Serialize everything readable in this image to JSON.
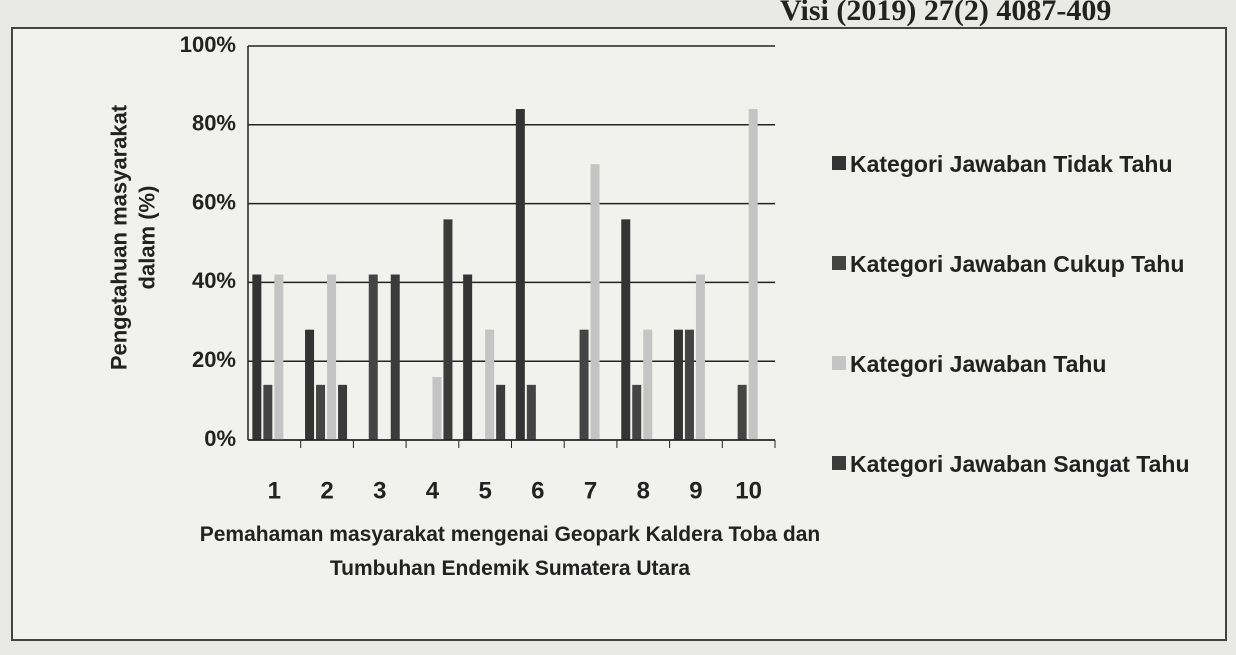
{
  "header": "Visi (2019) 27(2) 4087-409",
  "chart_data": {
    "type": "bar",
    "x_label": "Pemahaman masyarakat mengenai Geopark Kaldera Toba dan Tumbuhan Endemik Sumatera Utara",
    "y_label": "Pengetahuan masyarakat dalam (%)",
    "categories": [
      "1",
      "2",
      "3",
      "4",
      "5",
      "6",
      "7",
      "8",
      "9",
      "10"
    ],
    "series": [
      {
        "name": "Kategori Jawaban  Tidak Tahu",
        "color": "#333333",
        "values": [
          42,
          28,
          0,
          0,
          42,
          84,
          0,
          56,
          28,
          0
        ]
      },
      {
        "name": "Kategori Jawaban  Cukup Tahu",
        "color": "#444444",
        "values": [
          14,
          14,
          42,
          0,
          0,
          14,
          28,
          14,
          28,
          14
        ]
      },
      {
        "name": "Kategori Jawaban  Tahu",
        "color": "#c4c4c4",
        "values": [
          42,
          42,
          0,
          16,
          28,
          0,
          70,
          28,
          42,
          84
        ]
      },
      {
        "name": "Kategori Jawaban  Sangat Tahu",
        "color": "#3b3b3b",
        "values": [
          0,
          14,
          42,
          56,
          14,
          0,
          0,
          0,
          0,
          0
        ]
      }
    ],
    "ylim": [
      0,
      100
    ],
    "yticks": [
      {
        "value": 0,
        "label": "0%"
      },
      {
        "value": 20,
        "label": "20%"
      },
      {
        "value": 40,
        "label": "40%"
      },
      {
        "value": 60,
        "label": "60%"
      },
      {
        "value": 80,
        "label": "80%"
      },
      {
        "value": 100,
        "label": "100%"
      }
    ],
    "grid": true,
    "legend": "right"
  }
}
